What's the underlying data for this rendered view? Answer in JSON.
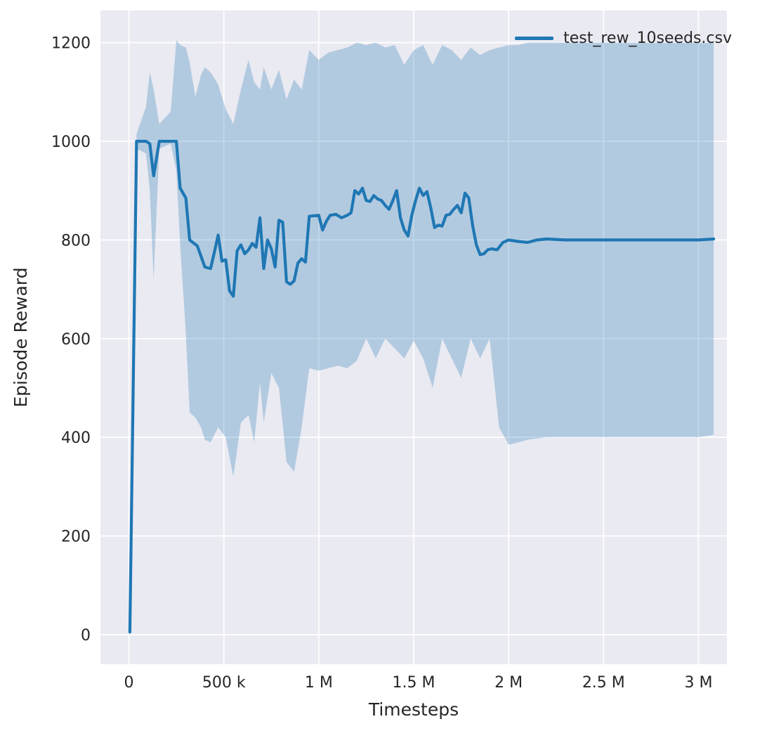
{
  "chart_data": {
    "type": "line",
    "xlabel": "Timesteps",
    "ylabel": "Episode Reward",
    "xlim": [
      -0.15,
      3.15
    ],
    "ylim": [
      -60,
      1265
    ],
    "grid": true,
    "xticks": {
      "values": [
        0,
        0.5,
        1,
        1.5,
        2,
        2.5,
        3
      ],
      "labels": [
        "0",
        "500 k",
        "1 M",
        "1.5 M",
        "2 M",
        "2.5 M",
        "3 M"
      ]
    },
    "yticks": {
      "values": [
        0,
        200,
        400,
        600,
        800,
        1000,
        1200
      ],
      "labels": [
        "0",
        "200",
        "400",
        "600",
        "800",
        "1000",
        "1200"
      ]
    },
    "legend": {
      "position": "upper right",
      "label": "test_rew_10seeds.csv"
    },
    "colors": {
      "line": "#1f77b4",
      "band_opacity": 0.28,
      "plot_bg": "#eaeaf2",
      "grid": "#ffffff",
      "text": "#262626"
    },
    "x_unit": "timesteps (millions)",
    "series": [
      {
        "name": "test_rew_10seeds.csv",
        "mean": [
          [
            0.005,
            5
          ],
          [
            0.04,
            1000
          ],
          [
            0.09,
            1000
          ],
          [
            0.11,
            995
          ],
          [
            0.13,
            930
          ],
          [
            0.16,
            1000
          ],
          [
            0.22,
            1000
          ],
          [
            0.25,
            1000
          ],
          [
            0.27,
            905
          ],
          [
            0.3,
            885
          ],
          [
            0.32,
            800
          ],
          [
            0.36,
            788
          ],
          [
            0.4,
            745
          ],
          [
            0.43,
            742
          ],
          [
            0.45,
            775
          ],
          [
            0.47,
            810
          ],
          [
            0.49,
            757
          ],
          [
            0.51,
            760
          ],
          [
            0.53,
            697
          ],
          [
            0.55,
            686
          ],
          [
            0.57,
            778
          ],
          [
            0.59,
            790
          ],
          [
            0.61,
            772
          ],
          [
            0.63,
            780
          ],
          [
            0.65,
            793
          ],
          [
            0.67,
            785
          ],
          [
            0.69,
            845
          ],
          [
            0.71,
            742
          ],
          [
            0.73,
            800
          ],
          [
            0.75,
            782
          ],
          [
            0.77,
            745
          ],
          [
            0.79,
            840
          ],
          [
            0.81,
            836
          ],
          [
            0.83,
            715
          ],
          [
            0.85,
            710
          ],
          [
            0.87,
            717
          ],
          [
            0.89,
            753
          ],
          [
            0.91,
            762
          ],
          [
            0.93,
            755
          ],
          [
            0.95,
            848
          ],
          [
            1.0,
            850
          ],
          [
            1.02,
            820
          ],
          [
            1.04,
            838
          ],
          [
            1.06,
            850
          ],
          [
            1.09,
            852
          ],
          [
            1.12,
            845
          ],
          [
            1.15,
            850
          ],
          [
            1.17,
            855
          ],
          [
            1.19,
            900
          ],
          [
            1.21,
            893
          ],
          [
            1.23,
            905
          ],
          [
            1.25,
            880
          ],
          [
            1.27,
            878
          ],
          [
            1.29,
            890
          ],
          [
            1.31,
            883
          ],
          [
            1.33,
            880
          ],
          [
            1.35,
            870
          ],
          [
            1.37,
            862
          ],
          [
            1.39,
            880
          ],
          [
            1.41,
            900
          ],
          [
            1.43,
            845
          ],
          [
            1.45,
            820
          ],
          [
            1.47,
            808
          ],
          [
            1.49,
            850
          ],
          [
            1.51,
            880
          ],
          [
            1.53,
            905
          ],
          [
            1.55,
            890
          ],
          [
            1.57,
            898
          ],
          [
            1.59,
            865
          ],
          [
            1.61,
            825
          ],
          [
            1.63,
            830
          ],
          [
            1.65,
            828
          ],
          [
            1.67,
            850
          ],
          [
            1.69,
            852
          ],
          [
            1.71,
            862
          ],
          [
            1.73,
            870
          ],
          [
            1.75,
            855
          ],
          [
            1.77,
            895
          ],
          [
            1.79,
            885
          ],
          [
            1.81,
            830
          ],
          [
            1.83,
            790
          ],
          [
            1.85,
            770
          ],
          [
            1.87,
            772
          ],
          [
            1.89,
            780
          ],
          [
            1.91,
            782
          ],
          [
            1.94,
            780
          ],
          [
            1.97,
            795
          ],
          [
            2.0,
            800
          ],
          [
            2.05,
            797
          ],
          [
            2.1,
            795
          ],
          [
            2.15,
            800
          ],
          [
            2.2,
            802
          ],
          [
            2.3,
            800
          ],
          [
            2.5,
            800
          ],
          [
            2.7,
            800
          ],
          [
            2.9,
            800
          ],
          [
            3.0,
            800
          ],
          [
            3.08,
            802
          ]
        ],
        "band": [
          [
            0.005,
            4,
            7
          ],
          [
            0.04,
            985,
            1015
          ],
          [
            0.09,
            975,
            1070
          ],
          [
            0.11,
            900,
            1140
          ],
          [
            0.13,
            720,
            1105
          ],
          [
            0.16,
            985,
            1035
          ],
          [
            0.22,
            995,
            1060
          ],
          [
            0.25,
            940,
            1205
          ],
          [
            0.27,
            790,
            1195
          ],
          [
            0.3,
            610,
            1190
          ],
          [
            0.32,
            450,
            1160
          ],
          [
            0.35,
            440,
            1090
          ],
          [
            0.38,
            420,
            1135
          ],
          [
            0.4,
            395,
            1150
          ],
          [
            0.43,
            390,
            1140
          ],
          [
            0.47,
            420,
            1115
          ],
          [
            0.51,
            400,
            1065
          ],
          [
            0.55,
            320,
            1035
          ],
          [
            0.59,
            430,
            1105
          ],
          [
            0.63,
            445,
            1165
          ],
          [
            0.66,
            390,
            1120
          ],
          [
            0.69,
            510,
            1105
          ],
          [
            0.71,
            430,
            1150
          ],
          [
            0.75,
            530,
            1105
          ],
          [
            0.79,
            500,
            1145
          ],
          [
            0.83,
            350,
            1085
          ],
          [
            0.87,
            330,
            1125
          ],
          [
            0.91,
            420,
            1105
          ],
          [
            0.95,
            540,
            1185
          ],
          [
            1.0,
            535,
            1165
          ],
          [
            1.05,
            540,
            1180
          ],
          [
            1.1,
            545,
            1185
          ],
          [
            1.15,
            540,
            1190
          ],
          [
            1.2,
            555,
            1200
          ],
          [
            1.25,
            600,
            1195
          ],
          [
            1.3,
            560,
            1200
          ],
          [
            1.35,
            600,
            1190
          ],
          [
            1.4,
            580,
            1195
          ],
          [
            1.45,
            560,
            1155
          ],
          [
            1.5,
            595,
            1185
          ],
          [
            1.55,
            560,
            1195
          ],
          [
            1.6,
            500,
            1155
          ],
          [
            1.65,
            600,
            1195
          ],
          [
            1.7,
            560,
            1185
          ],
          [
            1.75,
            520,
            1165
          ],
          [
            1.8,
            600,
            1190
          ],
          [
            1.85,
            560,
            1175
          ],
          [
            1.9,
            600,
            1185
          ],
          [
            1.95,
            420,
            1190
          ],
          [
            2.0,
            385,
            1195
          ],
          [
            2.05,
            390,
            1195
          ],
          [
            2.1,
            395,
            1200
          ],
          [
            2.2,
            400,
            1200
          ],
          [
            2.4,
            400,
            1200
          ],
          [
            2.6,
            400,
            1200
          ],
          [
            2.8,
            400,
            1200
          ],
          [
            3.0,
            400,
            1200
          ],
          [
            3.08,
            405,
            1200
          ]
        ]
      }
    ]
  }
}
